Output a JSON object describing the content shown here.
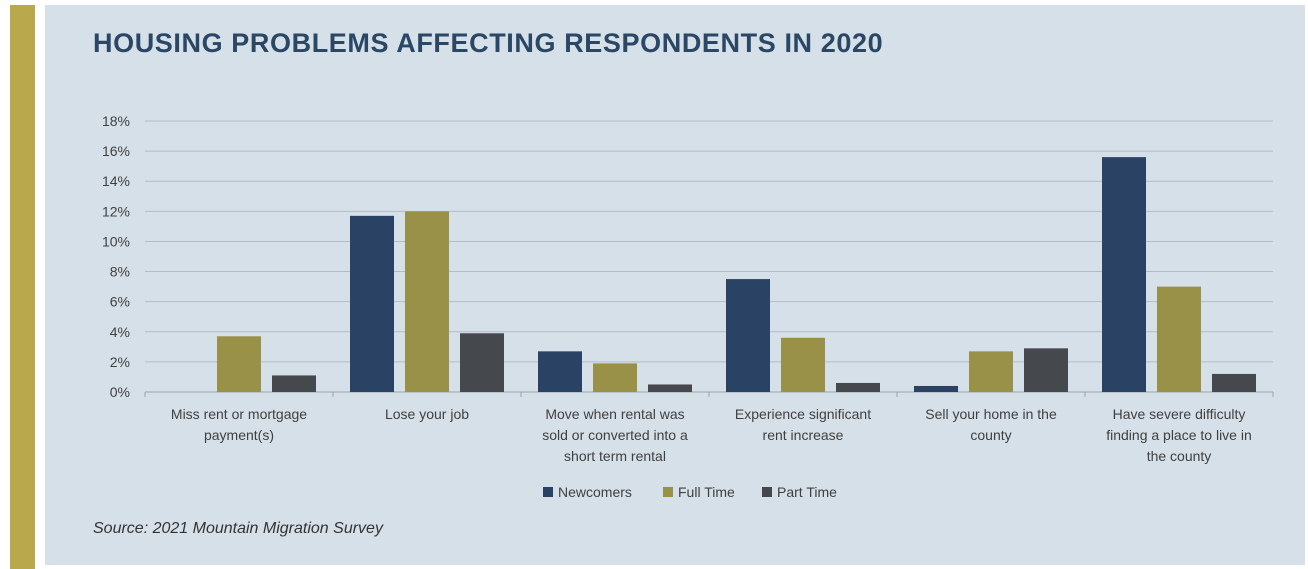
{
  "colors": {
    "accent": "#b9a84c",
    "panel": "#d6e0e8",
    "title": "#2a4766",
    "gridline": "#b3bcc4"
  },
  "header": {
    "title": "HOUSING PROBLEMS AFFECTING RESPONDENTS IN 2020"
  },
  "footer": {
    "source": "Source: 2021 Mountain Migration Survey"
  },
  "chart_data": {
    "type": "bar",
    "title": "HOUSING PROBLEMS AFFECTING RESPONDENTS IN 2020",
    "xlabel": "",
    "ylabel": "",
    "ylim": [
      0,
      18
    ],
    "ytick_step": 2,
    "ytick_labels": [
      "0%",
      "2%",
      "4%",
      "6%",
      "8%",
      "10%",
      "12%",
      "14%",
      "16%",
      "18%"
    ],
    "grid": true,
    "legend_position": "bottom",
    "categories": [
      [
        "Miss rent or mortgage",
        "payment(s)"
      ],
      [
        "Lose your job"
      ],
      [
        "Move when rental was",
        "sold or converted into a",
        "short term rental"
      ],
      [
        "Experience significant",
        "rent increase"
      ],
      [
        "Sell your home in the",
        "county"
      ],
      [
        "Have severe difficulty",
        "finding a place to live in",
        "the county"
      ]
    ],
    "series": [
      {
        "name": "Newcomers",
        "color": "#2a4263",
        "values": [
          0,
          11.7,
          2.7,
          7.5,
          0.4,
          15.6
        ]
      },
      {
        "name": "Full Time",
        "color": "#9a9148",
        "values": [
          3.7,
          12.0,
          1.9,
          3.6,
          2.7,
          7.0
        ]
      },
      {
        "name": "Part Time",
        "color": "#45484d",
        "values": [
          1.1,
          3.9,
          0.5,
          0.6,
          2.9,
          1.2
        ]
      }
    ]
  }
}
